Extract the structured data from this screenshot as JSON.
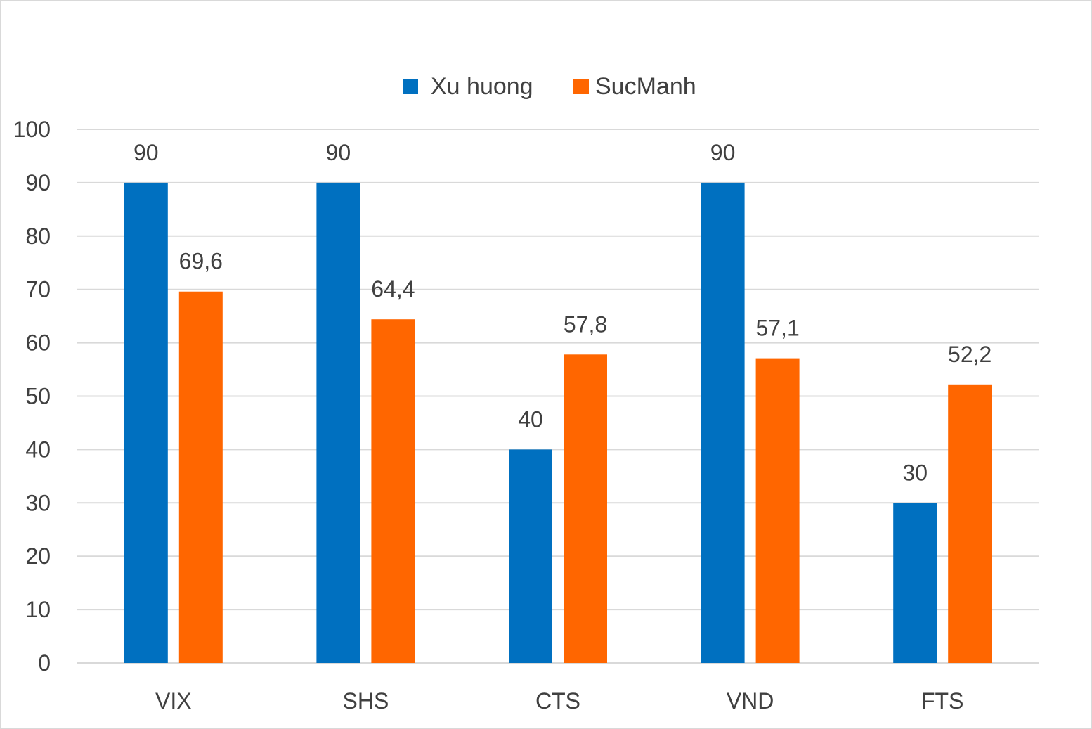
{
  "chart_data": {
    "type": "bar",
    "categories": [
      "VIX",
      "SHS",
      "CTS",
      "VND",
      "FTS"
    ],
    "series": [
      {
        "name": "Xu huong",
        "color": "#0070C0",
        "values": [
          90,
          90,
          40,
          90,
          30
        ],
        "labels": [
          "90",
          "90",
          "40",
          "90",
          "30"
        ]
      },
      {
        "name": "SucManh",
        "color": "#FF6600",
        "values": [
          69.6,
          64.4,
          57.8,
          57.1,
          52.2
        ],
        "labels": [
          "69,6",
          "64,4",
          "57,8",
          "57,1",
          "52,2"
        ]
      }
    ],
    "ylim": [
      0,
      100
    ],
    "yticks": [
      0,
      10,
      20,
      30,
      40,
      50,
      60,
      70,
      80,
      90,
      100
    ],
    "grid": true,
    "legend_position": "top-center",
    "gridline_color": "#d9d9d9"
  }
}
